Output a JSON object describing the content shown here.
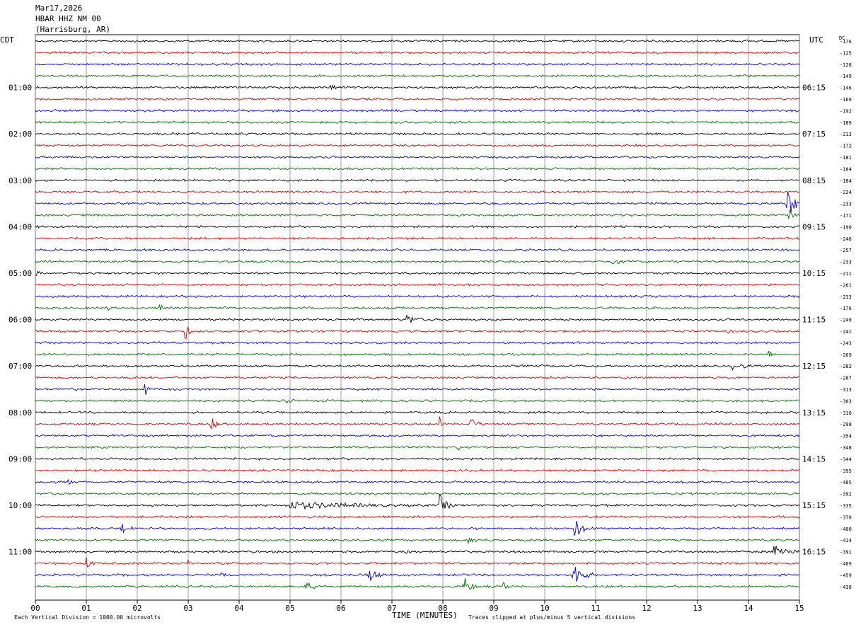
{
  "header": {
    "date": "Mar17,2026",
    "station": "HBAR HHZ NM 00",
    "location": "(Harrisburg, AR)"
  },
  "left_tz": "CDT",
  "right_tz": "UTC",
  "dc_label": "DC",
  "footer": {
    "xlabel": "TIME (MINUTES)",
    "scale_note": "Each Vertical Division = 1000.00 microvolts",
    "clip_note": "Traces clipped at plus/minus 5 vertical divisions"
  },
  "chart_data": {
    "type": "line",
    "title": "HBAR HHZ NM 00",
    "xlabel": "TIME (MINUTES)",
    "xlim": [
      0,
      15
    ],
    "x_ticks": [
      "00",
      "01",
      "02",
      "03",
      "04",
      "05",
      "06",
      "07",
      "08",
      "09",
      "10",
      "11",
      "12",
      "13",
      "14",
      "15"
    ],
    "trace_colors": [
      "#000000",
      "#e00000",
      "#0000d0",
      "#007000"
    ],
    "trace_count": 48,
    "cdt_hour_labels": [
      "01:00",
      "02:00",
      "03:00",
      "04:00",
      "05:00",
      "06:00",
      "07:00",
      "08:00",
      "09:00",
      "10:00",
      "11:00"
    ],
    "utc_hour_labels": [
      "06:15",
      "07:15",
      "08:15",
      "09:15",
      "10:15",
      "11:15",
      "12:15",
      "13:15",
      "14:15",
      "15:15",
      "16:15"
    ],
    "hour_label_traces": [
      4,
      8,
      12,
      16,
      20,
      24,
      28,
      32,
      36,
      40,
      44
    ],
    "dc_offsets": [
      "-176",
      "-125",
      "-128",
      "-149",
      "-146",
      "-169",
      "-192",
      "-189",
      "-213",
      "-172",
      "-181",
      "-184",
      "-184",
      "-224",
      "-233",
      "-171",
      "-190",
      "-248",
      "-257",
      "-233",
      "-211",
      "-261",
      "-233",
      "-176",
      "-249",
      "-241",
      "-243",
      "-269",
      "-282",
      "-287",
      "-313",
      "-303",
      "-310",
      "-298",
      "-354",
      "-348",
      "-344",
      "-395",
      "-405",
      "-392",
      "-335",
      "-370",
      "-400",
      "-414",
      "-391",
      "-409",
      "-459",
      "-438"
    ],
    "events": [
      {
        "trace": 4,
        "minute": 5.8,
        "amp": 4,
        "dur": 0.25
      },
      {
        "trace": 14,
        "minute": 14.75,
        "amp": 26,
        "dur": 0.35
      },
      {
        "trace": 15,
        "minute": 14.8,
        "amp": 14,
        "dur": 0.15
      },
      {
        "trace": 19,
        "minute": 11.3,
        "amp": 5,
        "dur": 0.3
      },
      {
        "trace": 20,
        "minute": 0.0,
        "amp": 5,
        "dur": 0.15
      },
      {
        "trace": 23,
        "minute": 2.45,
        "amp": 6,
        "dur": 0.15
      },
      {
        "trace": 23,
        "minute": 1.45,
        "amp": 4,
        "dur": 0.05
      },
      {
        "trace": 24,
        "minute": 7.3,
        "amp": 7,
        "dur": 0.4
      },
      {
        "trace": 25,
        "minute": 2.95,
        "amp": 13,
        "dur": 0.15
      },
      {
        "trace": 25,
        "minute": 13.6,
        "amp": 3,
        "dur": 0.1
      },
      {
        "trace": 27,
        "minute": 14.4,
        "amp": 6,
        "dur": 0.1
      },
      {
        "trace": 28,
        "minute": 13.7,
        "amp": 5,
        "dur": 0.5
      },
      {
        "trace": 30,
        "minute": 2.15,
        "amp": 10,
        "dur": 0.12
      },
      {
        "trace": 31,
        "minute": 4.95,
        "amp": 4,
        "dur": 0.2
      },
      {
        "trace": 33,
        "minute": 3.45,
        "amp": 8,
        "dur": 0.3
      },
      {
        "trace": 33,
        "minute": 7.95,
        "amp": 9,
        "dur": 0.05
      },
      {
        "trace": 33,
        "minute": 8.55,
        "amp": 9,
        "dur": 0.3
      },
      {
        "trace": 35,
        "minute": 8.3,
        "amp": 5,
        "dur": 0.08
      },
      {
        "trace": 38,
        "minute": 0.65,
        "amp": 4,
        "dur": 0.15
      },
      {
        "trace": 40,
        "minute": 5.0,
        "amp": 5,
        "dur": 2.8
      },
      {
        "trace": 40,
        "minute": 7.95,
        "amp": 14,
        "dur": 0.3
      },
      {
        "trace": 42,
        "minute": 1.7,
        "amp": 8,
        "dur": 0.3
      },
      {
        "trace": 42,
        "minute": 10.6,
        "amp": 12,
        "dur": 0.45
      },
      {
        "trace": 43,
        "minute": 8.5,
        "amp": 4,
        "dur": 0.4
      },
      {
        "trace": 44,
        "minute": 7.3,
        "amp": 6,
        "dur": 0.1
      },
      {
        "trace": 44,
        "minute": 14.5,
        "amp": 11,
        "dur": 0.6
      },
      {
        "trace": 45,
        "minute": 1.0,
        "amp": 8,
        "dur": 0.25
      },
      {
        "trace": 45,
        "minute": 3.0,
        "amp": 5,
        "dur": 0.1
      },
      {
        "trace": 46,
        "minute": 6.55,
        "amp": 10,
        "dur": 0.35
      },
      {
        "trace": 46,
        "minute": 10.55,
        "amp": 22,
        "dur": 0.4
      },
      {
        "trace": 46,
        "minute": 3.65,
        "amp": 5,
        "dur": 0.15
      },
      {
        "trace": 47,
        "minute": 8.4,
        "amp": 17,
        "dur": 0.3
      },
      {
        "trace": 47,
        "minute": 5.3,
        "amp": 6,
        "dur": 0.4
      },
      {
        "trace": 47,
        "minute": 9.2,
        "amp": 7,
        "dur": 0.15
      }
    ]
  }
}
